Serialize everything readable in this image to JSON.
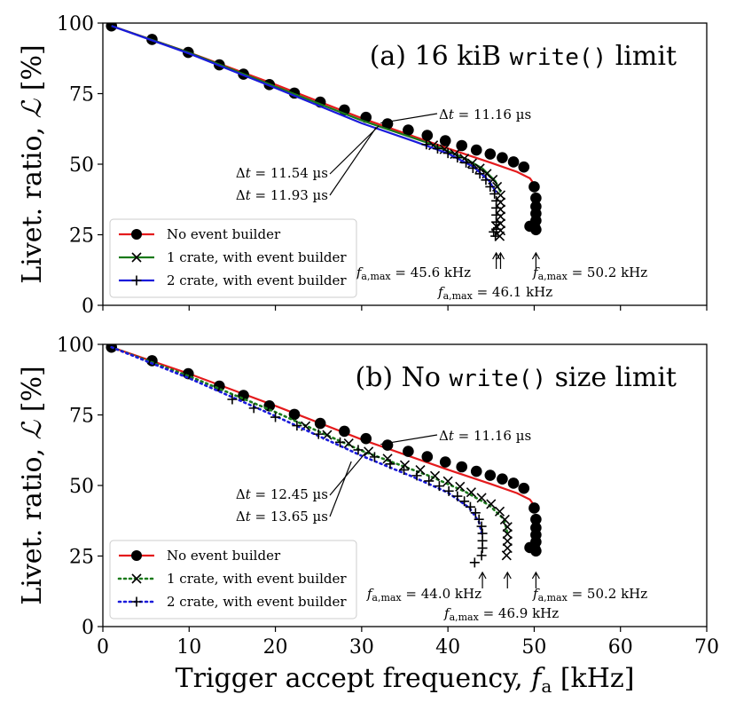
{
  "chart_data": [
    {
      "type": "line",
      "panel": "a",
      "title_prefix": "(a) 16 kiB ",
      "title_code": "write()",
      "title_suffix": " limit",
      "ylabel": "Livet. ratio, ℒ [%]",
      "xlim": [
        0,
        70
      ],
      "ylim": [
        0,
        100
      ],
      "xticks": [
        0,
        10,
        20,
        30,
        40,
        50,
        60,
        70
      ],
      "yticks": [
        0,
        25,
        50,
        75,
        100
      ],
      "x_ticklabels_visible": false,
      "series": [
        {
          "name": "No event builder",
          "color": "#e41a1c",
          "line": "solid",
          "marker": "circle",
          "curve": [
            [
              1,
              99
            ],
            [
              10,
              89.6
            ],
            [
              20,
              78.2
            ],
            [
              30,
              66.3
            ],
            [
              40,
              55.6
            ],
            [
              45,
              50.5
            ],
            [
              48,
              47.3
            ],
            [
              49.5,
              45
            ],
            [
              50.2,
              42
            ]
          ],
          "points": [
            [
              1,
              99
            ],
            [
              5.7,
              94.2
            ],
            [
              9.9,
              89.6
            ],
            [
              13.5,
              85.2
            ],
            [
              16.3,
              81.9
            ],
            [
              19.3,
              78.2
            ],
            [
              22.2,
              75.2
            ],
            [
              25.2,
              72
            ],
            [
              28,
              69.2
            ],
            [
              30.5,
              66.6
            ],
            [
              33,
              64.3
            ],
            [
              35.4,
              62.1
            ],
            [
              37.6,
              60.2
            ],
            [
              39.7,
              58.3
            ],
            [
              41.6,
              56.6
            ],
            [
              43.3,
              55
            ],
            [
              44.9,
              53.6
            ],
            [
              46.3,
              52.3
            ],
            [
              47.6,
              50.8
            ],
            [
              48.8,
              49
            ],
            [
              50,
              42
            ],
            [
              50.2,
              38
            ],
            [
              50.2,
              35
            ],
            [
              50.2,
              32.5
            ],
            [
              50.2,
              30
            ],
            [
              50.1,
              27.5
            ],
            [
              49.5,
              28
            ],
            [
              50.2,
              26.8
            ]
          ]
        },
        {
          "name": "1 crate, with event builder",
          "color": "#1a7a1a",
          "line": "solid",
          "marker": "x",
          "curve": [
            [
              1,
              99
            ],
            [
              10,
              89.5
            ],
            [
              20,
              77.5
            ],
            [
              30,
              65.5
            ],
            [
              38,
              57.2
            ],
            [
              42,
              52
            ],
            [
              44,
              48.5
            ],
            [
              45.5,
              44
            ],
            [
              46.1,
              40
            ]
          ],
          "points": [
            [
              38.3,
              56.7
            ],
            [
              39.6,
              55.3
            ],
            [
              40.8,
              53.6
            ],
            [
              41.9,
              52
            ],
            [
              42.8,
              50.3
            ],
            [
              43.7,
              48.5
            ],
            [
              44.5,
              46.6
            ],
            [
              45.2,
              44.5
            ],
            [
              45.7,
              42
            ],
            [
              46.1,
              39
            ],
            [
              46.1,
              36.5
            ],
            [
              46.1,
              34
            ],
            [
              46.1,
              31.5
            ],
            [
              46.1,
              29
            ],
            [
              46.1,
              26.5
            ],
            [
              46,
              24.5
            ],
            [
              45.6,
              28
            ]
          ]
        },
        {
          "name": "2 crate, with event builder",
          "color": "#1a1adb",
          "line": "solid",
          "marker": "plus",
          "curve": [
            [
              1,
              99
            ],
            [
              10,
              89.2
            ],
            [
              20,
              77
            ],
            [
              30,
              64.5
            ],
            [
              36,
              58.2
            ],
            [
              40,
              53.8
            ],
            [
              43,
              49
            ],
            [
              44.8,
              44
            ],
            [
              45.6,
              40
            ]
          ],
          "points": [
            [
              37.5,
              57
            ],
            [
              38.8,
              55.5
            ],
            [
              40,
              53.9
            ],
            [
              41.1,
              52.3
            ],
            [
              42.1,
              50.5
            ],
            [
              42.9,
              48.6
            ],
            [
              43.7,
              46.6
            ],
            [
              44.4,
              44.4
            ],
            [
              44.9,
              42
            ],
            [
              45.4,
              39.5
            ],
            [
              45.6,
              37
            ],
            [
              45.6,
              34.5
            ],
            [
              45.6,
              32
            ],
            [
              45.6,
              29.5
            ],
            [
              45.6,
              27
            ],
            [
              45.5,
              24.5
            ],
            [
              45.3,
              26
            ]
          ]
        }
      ],
      "annotations": [
        {
          "text": "Δt = 11.16 µs",
          "x": 32.2,
          "y": 64.6
        },
        {
          "text": "Δt = 11.54 µs",
          "x": 32.0,
          "y": 63.6
        },
        {
          "text": "Δt = 11.93 µs",
          "x": 31.7,
          "y": 63.1
        },
        {
          "text": "f_a,max = 45.6 kHz",
          "x": 45.6,
          "y": 0
        },
        {
          "text": "f_a,max = 46.1 kHz",
          "x": 46.1,
          "y": 0
        },
        {
          "text": "f_a,max = 50.2 kHz",
          "x": 50.2,
          "y": 0
        }
      ],
      "legend_position": "lower-left"
    },
    {
      "type": "line",
      "panel": "b",
      "title_prefix": "(b) No ",
      "title_code": "write()",
      "title_suffix": " size limit",
      "xlabel": "Trigger accept frequency, f_a [kHz]",
      "ylabel": "Livet. ratio, ℒ [%]",
      "xlim": [
        0,
        70
      ],
      "ylim": [
        0,
        100
      ],
      "xticks": [
        0,
        10,
        20,
        30,
        40,
        50,
        60,
        70
      ],
      "yticks": [
        0,
        25,
        50,
        75,
        100
      ],
      "x_ticklabels_visible": true,
      "series": [
        {
          "name": "No event builder",
          "color": "#e41a1c",
          "line": "solid",
          "marker": "circle",
          "curve": [
            [
              1,
              99
            ],
            [
              10,
              89.6
            ],
            [
              20,
              78.2
            ],
            [
              30,
              66.3
            ],
            [
              40,
              55.6
            ],
            [
              45,
              50.5
            ],
            [
              48,
              47.3
            ],
            [
              49.5,
              45
            ],
            [
              50.2,
              42
            ]
          ],
          "points": [
            [
              1,
              99
            ],
            [
              5.7,
              94.2
            ],
            [
              9.9,
              89.6
            ],
            [
              13.5,
              85.2
            ],
            [
              16.3,
              81.9
            ],
            [
              19.3,
              78.2
            ],
            [
              22.2,
              75.2
            ],
            [
              25.2,
              72
            ],
            [
              28,
              69.2
            ],
            [
              30.5,
              66.6
            ],
            [
              33,
              64.3
            ],
            [
              35.4,
              62.1
            ],
            [
              37.6,
              60.2
            ],
            [
              39.7,
              58.3
            ],
            [
              41.6,
              56.6
            ],
            [
              43.3,
              55
            ],
            [
              44.9,
              53.6
            ],
            [
              46.3,
              52.3
            ],
            [
              47.6,
              50.8
            ],
            [
              48.8,
              49
            ],
            [
              50,
              42
            ],
            [
              50.2,
              38
            ],
            [
              50.2,
              35
            ],
            [
              50.2,
              32.5
            ],
            [
              50.2,
              30
            ],
            [
              50.1,
              27.5
            ],
            [
              49.5,
              28
            ],
            [
              50.2,
              26.8
            ]
          ]
        },
        {
          "name": "1 crate, with event builder",
          "color": "#1a7a1a",
          "line": "dotted",
          "marker": "x",
          "curve": [
            [
              1,
              99
            ],
            [
              10,
              88.7
            ],
            [
              20,
              76
            ],
            [
              30,
              62.3
            ],
            [
              38,
              53.2
            ],
            [
              42,
              47.8
            ],
            [
              44.8,
              43
            ],
            [
              46.5,
              38
            ],
            [
              46.9,
              33
            ]
          ],
          "points": [
            [
              23.5,
              71
            ],
            [
              26,
              67.9
            ],
            [
              28.5,
              64.9
            ],
            [
              30.8,
              62
            ],
            [
              33,
              59.5
            ],
            [
              35,
              57.2
            ],
            [
              36.8,
              55.5
            ],
            [
              38.5,
              53.4
            ],
            [
              40,
              51.5
            ],
            [
              41.4,
              49.6
            ],
            [
              42.7,
              47.6
            ],
            [
              43.9,
              45.6
            ],
            [
              45,
              43.4
            ],
            [
              46,
              40.8
            ],
            [
              46.6,
              37.9
            ],
            [
              46.9,
              35.3
            ],
            [
              46.9,
              32.8
            ],
            [
              46.9,
              30.3
            ],
            [
              46.9,
              27.8
            ],
            [
              46.8,
              25.2
            ]
          ]
        },
        {
          "name": "2 crate, with event builder",
          "color": "#1a1adb",
          "line": "dotted",
          "marker": "plus",
          "curve": [
            [
              1,
              99
            ],
            [
              10,
              88
            ],
            [
              20,
              74.6
            ],
            [
              30,
              60.5
            ],
            [
              36,
              53
            ],
            [
              40,
              47.5
            ],
            [
              42.5,
              42
            ],
            [
              43.6,
              37
            ],
            [
              44,
              32
            ]
          ],
          "points": [
            [
              15,
              80.5
            ],
            [
              17.5,
              77.4
            ],
            [
              20,
              74.2
            ],
            [
              22.5,
              71.2
            ],
            [
              25,
              68.2
            ],
            [
              27.5,
              65.3
            ],
            [
              29.6,
              62.6
            ],
            [
              31.5,
              60.1
            ],
            [
              33.3,
              57.6
            ],
            [
              34.9,
              55.5
            ],
            [
              36.4,
              53.5
            ],
            [
              37.8,
              51.6
            ],
            [
              39,
              49.8
            ],
            [
              40.1,
              48
            ],
            [
              41.1,
              46.2
            ],
            [
              41.9,
              44.4
            ],
            [
              42.6,
              42.4
            ],
            [
              43.2,
              40.3
            ],
            [
              43.6,
              38
            ],
            [
              43.9,
              35.5
            ],
            [
              44,
              33
            ],
            [
              44,
              30.4
            ],
            [
              44,
              27.8
            ],
            [
              43.9,
              25.2
            ],
            [
              43.1,
              22.7
            ]
          ]
        }
      ],
      "annotations": [
        {
          "text": "Δt = 11.16 µs",
          "x": 32.2,
          "y": 64.6
        },
        {
          "text": "Δt = 12.45 µs",
          "x": 30.5,
          "y": 61.8
        },
        {
          "text": "Δt = 13.65 µs",
          "x": 28.8,
          "y": 58.5
        },
        {
          "text": "f_a,max = 44.0 kHz",
          "x": 44.0,
          "y": 0
        },
        {
          "text": "f_a,max = 46.9 kHz",
          "x": 46.9,
          "y": 0
        },
        {
          "text": "f_a,max = 50.2 kHz",
          "x": 50.2,
          "y": 0
        }
      ],
      "legend_position": "lower-left"
    }
  ]
}
